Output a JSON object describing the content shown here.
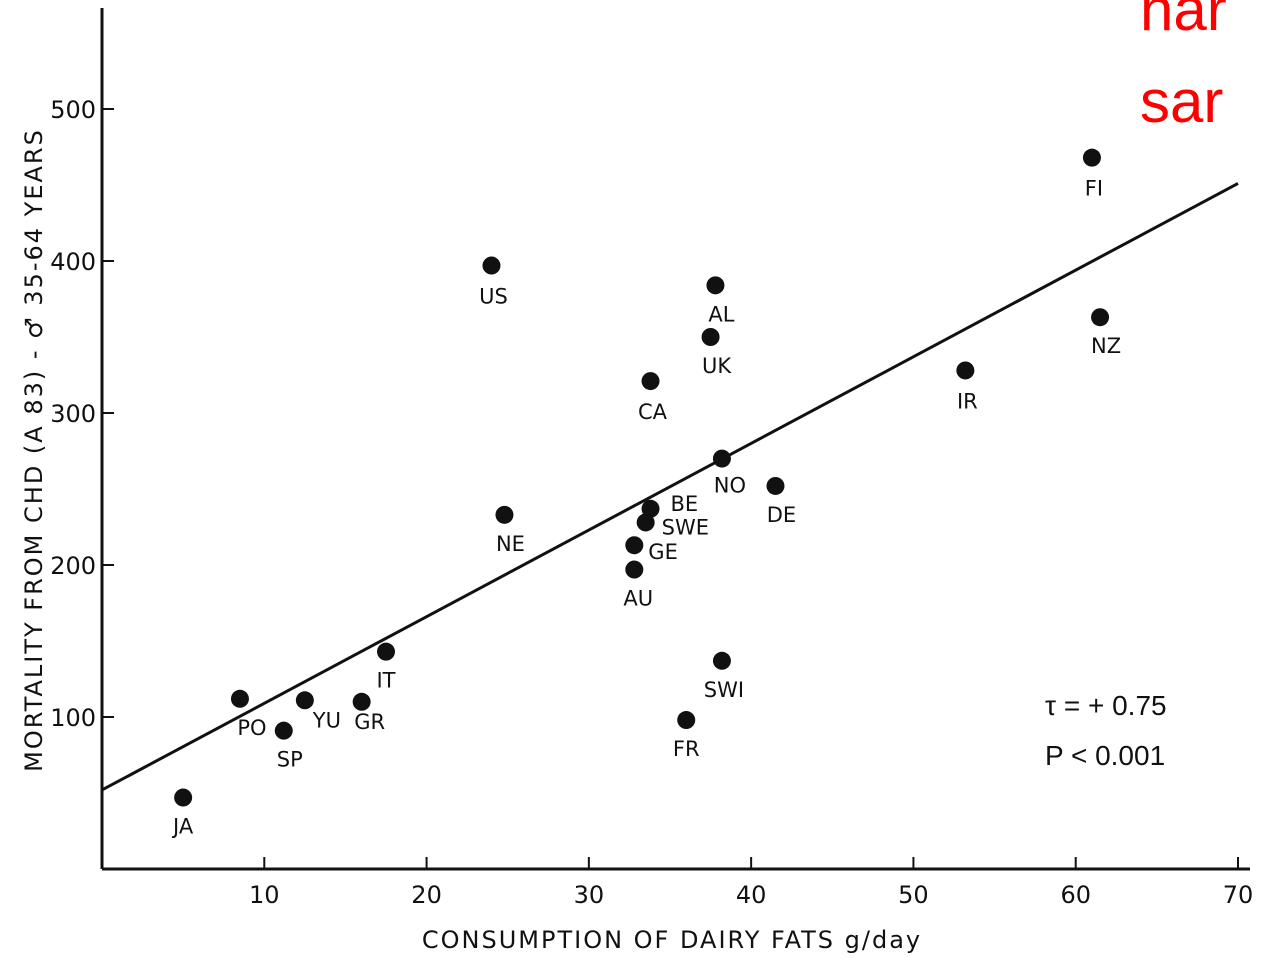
{
  "chart_data": {
    "type": "scatter",
    "title": "",
    "xlabel": "CONSUMPTION OF DAIRY FATS g/day",
    "ylabel": "MORTALITY FROM CHD (A 83) - ♂ 35-64 YEARS",
    "xlim": [
      0,
      70
    ],
    "ylim": [
      0,
      560
    ],
    "xticks": [
      10,
      20,
      30,
      40,
      50,
      60,
      70
    ],
    "yticks": [
      100,
      200,
      300,
      400,
      500
    ],
    "grid": false,
    "points": [
      {
        "label": "JA",
        "x": 5,
        "y": 47
      },
      {
        "label": "PO",
        "x": 8.5,
        "y": 112
      },
      {
        "label": "SP",
        "x": 11.2,
        "y": 91
      },
      {
        "label": "YU",
        "x": 12.5,
        "y": 111
      },
      {
        "label": "GR",
        "x": 16,
        "y": 110
      },
      {
        "label": "IT",
        "x": 17.5,
        "y": 143
      },
      {
        "label": "US",
        "x": 24,
        "y": 397
      },
      {
        "label": "NE",
        "x": 24.8,
        "y": 233
      },
      {
        "label": "AU",
        "x": 32.8,
        "y": 197
      },
      {
        "label": "GE",
        "x": 32.8,
        "y": 213
      },
      {
        "label": "SWE",
        "x": 33.5,
        "y": 228
      },
      {
        "label": "BE",
        "x": 33.8,
        "y": 237
      },
      {
        "label": "CA",
        "x": 33.8,
        "y": 321
      },
      {
        "label": "FR",
        "x": 36,
        "y": 98
      },
      {
        "label": "UK",
        "x": 37.5,
        "y": 350
      },
      {
        "label": "AL",
        "x": 37.8,
        "y": 384
      },
      {
        "label": "SWI",
        "x": 38.2,
        "y": 137
      },
      {
        "label": "NO",
        "x": 38.2,
        "y": 270
      },
      {
        "label": "DE",
        "x": 41.5,
        "y": 252
      },
      {
        "label": "IR",
        "x": 53.2,
        "y": 328
      },
      {
        "label": "FI",
        "x": 61,
        "y": 468
      },
      {
        "label": "NZ",
        "x": 61.5,
        "y": 363
      }
    ],
    "regression_line": {
      "x": [
        0,
        70
      ],
      "y": [
        52,
        451
      ]
    },
    "annotations": [
      "τ = + 0.75",
      "P < 0.001"
    ]
  },
  "corner_overlay": [
    "har",
    "sar"
  ]
}
